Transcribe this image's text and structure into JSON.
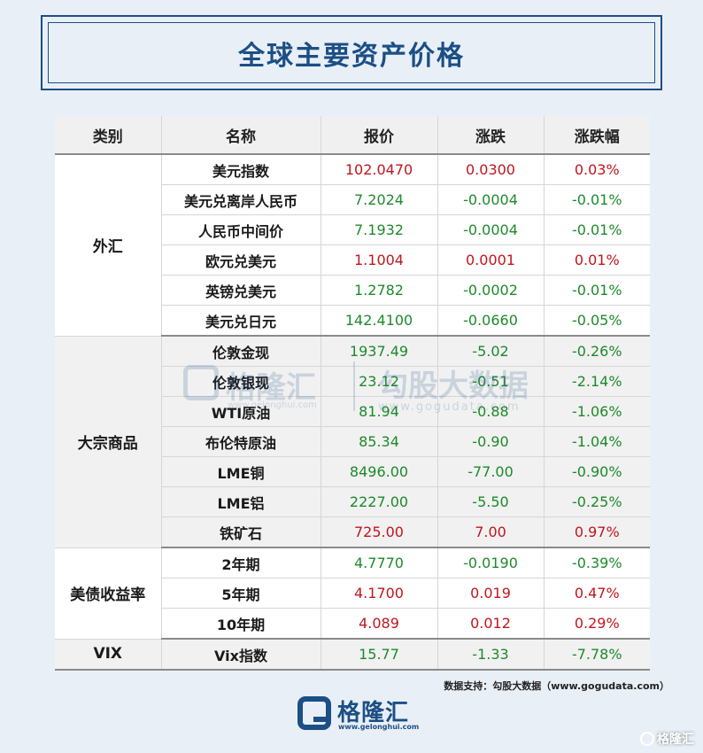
{
  "title": "全球主要资产价格",
  "columns": [
    "类别",
    "名称",
    "报价",
    "涨跌",
    "涨跌幅"
  ],
  "groups": [
    {
      "category": "外汇",
      "rows": [
        {
          "name": "美元指数",
          "price": "102.0470",
          "change": "0.0300",
          "pct": "0.03%",
          "dir": "up"
        },
        {
          "name": "美元兑离岸人民币",
          "price": "7.2024",
          "change": "-0.0004",
          "pct": "-0.01%",
          "dir": "down"
        },
        {
          "name": "人民币中间价",
          "price": "7.1932",
          "change": "-0.0004",
          "pct": "-0.01%",
          "dir": "down"
        },
        {
          "name": "欧元兑美元",
          "price": "1.1004",
          "change": "0.0001",
          "pct": "0.01%",
          "dir": "up"
        },
        {
          "name": "英镑兑美元",
          "price": "1.2782",
          "change": "-0.0002",
          "pct": "-0.01%",
          "dir": "down"
        },
        {
          "name": "美元兑日元",
          "price": "142.4100",
          "change": "-0.0660",
          "pct": "-0.05%",
          "dir": "down"
        }
      ]
    },
    {
      "category": "大宗商品",
      "rows": [
        {
          "name": "伦敦金现",
          "price": "1937.49",
          "change": "-5.02",
          "pct": "-0.26%",
          "dir": "down"
        },
        {
          "name": "伦敦银现",
          "price": "23.12",
          "change": "-0.51",
          "pct": "-2.14%",
          "dir": "down"
        },
        {
          "name": "WTI原油",
          "price": "81.94",
          "change": "-0.88",
          "pct": "-1.06%",
          "dir": "down"
        },
        {
          "name": "布伦特原油",
          "price": "85.34",
          "change": "-0.90",
          "pct": "-1.04%",
          "dir": "down"
        },
        {
          "name": "LME铜",
          "price": "8496.00",
          "change": "-77.00",
          "pct": "-0.90%",
          "dir": "down"
        },
        {
          "name": "LME铝",
          "price": "2227.00",
          "change": "-5.50",
          "pct": "-0.25%",
          "dir": "down"
        },
        {
          "name": "铁矿石",
          "price": "725.00",
          "change": "7.00",
          "pct": "0.97%",
          "dir": "up"
        }
      ]
    },
    {
      "category": "美债收益率",
      "rows": [
        {
          "name": "2年期",
          "price": "4.7770",
          "change": "-0.0190",
          "pct": "-0.39%",
          "dir": "down"
        },
        {
          "name": "5年期",
          "price": "4.1700",
          "change": "0.019",
          "pct": "0.47%",
          "dir": "up"
        },
        {
          "name": "10年期",
          "price": "4.089",
          "change": "0.012",
          "pct": "0.29%",
          "dir": "up"
        }
      ]
    },
    {
      "category": "VIX",
      "rows": [
        {
          "name": "Vix指数",
          "price": "15.77",
          "change": "-1.33",
          "pct": "-7.78%",
          "dir": "down"
        }
      ]
    }
  ],
  "colors": {
    "up": "#c0161d",
    "down": "#1d8a2a",
    "brand": "#1b4f85"
  },
  "watermark": {
    "brand": "格隆汇",
    "url": "www.gelonghui.com",
    "brand2": "勾股大数据",
    "url2": "www.gogudata.com"
  },
  "source": "数据支持：勾股大数据（www.gogudata.com）",
  "footer": {
    "brand": "格隆汇",
    "url": "www.gelonghui.com"
  },
  "corner": "格隆汇"
}
